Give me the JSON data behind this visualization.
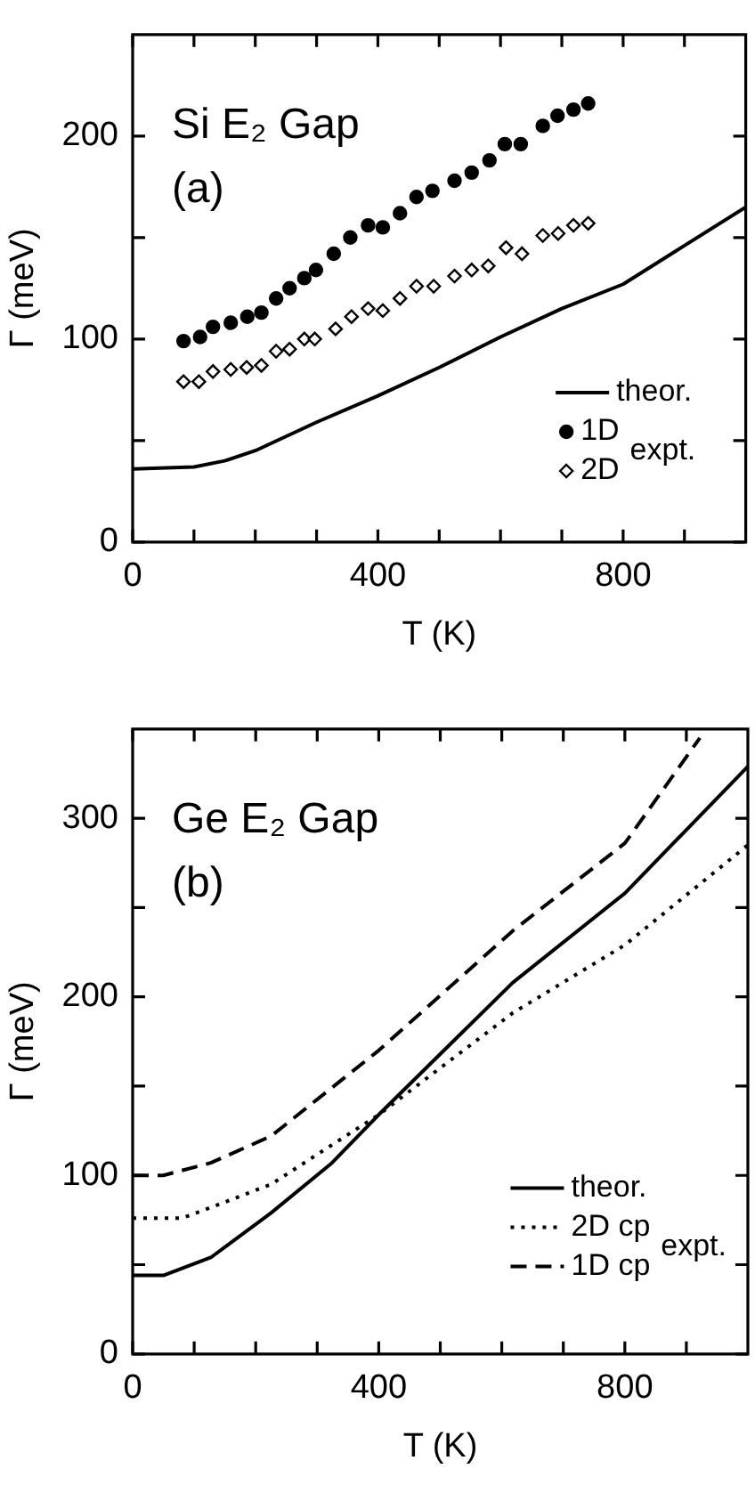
{
  "chart_data": [
    {
      "type": "scatter",
      "title": "Si E₂ Gap",
      "subtitle": "(a)",
      "xlabel": "T (K)",
      "ylabel": "Γ (meV)",
      "annotations": [
        "expt."
      ],
      "xlim": [
        0,
        1000
      ],
      "xticks": [
        0,
        {
          "value": 100,
          "label": null
        },
        {
          "value": 200,
          "label": null
        },
        {
          "value": 300,
          "label": null
        },
        400,
        {
          "value": 500,
          "label": null
        },
        {
          "value": 600,
          "label": null
        },
        {
          "value": 700,
          "label": null
        },
        800,
        {
          "value": 900,
          "label": null
        }
      ],
      "ylim": [
        0,
        250
      ],
      "yticks": [
        0,
        {
          "value": 50,
          "label": null
        },
        100,
        {
          "value": 150,
          "label": null
        },
        200
      ],
      "grid": false,
      "legend": "bottom right",
      "series": [
        {
          "name": "theor.",
          "type": "line",
          "color": "#000000",
          "line_style": "solid",
          "marker": "none",
          "x": [
            0,
            100,
            150,
            200,
            250,
            300,
            400,
            500,
            600,
            700,
            800,
            900,
            1000
          ],
          "values": [
            36,
            37,
            40,
            45,
            52,
            59,
            72,
            86,
            101,
            115,
            127,
            146,
            165
          ]
        },
        {
          "name": "1D",
          "color": "#000000",
          "marker": "circle",
          "x": [
            83,
            110,
            131,
            160,
            187,
            210,
            234,
            256,
            280,
            299,
            328,
            355,
            384,
            408,
            436,
            463,
            489,
            525,
            553,
            582,
            607,
            633,
            669,
            693,
            719,
            743
          ],
          "values": [
            99,
            101,
            106,
            108,
            111,
            113,
            120,
            125,
            130,
            134,
            142,
            150,
            156,
            155,
            162,
            170,
            173,
            178,
            182,
            188,
            196,
            196,
            205,
            210,
            213,
            216
          ]
        },
        {
          "name": "2D",
          "color": "#000000",
          "marker": "diamond",
          "x": [
            83,
            108,
            131,
            160,
            186,
            210,
            234,
            256,
            280,
            297,
            331,
            357,
            384,
            408,
            436,
            463,
            491,
            525,
            553,
            580,
            609,
            635,
            669,
            694,
            719,
            743
          ],
          "values": [
            79,
            79,
            84,
            85,
            86,
            87,
            94,
            95,
            100,
            100,
            105,
            111,
            115,
            114,
            120,
            126,
            126,
            131,
            134,
            136,
            145,
            142,
            151,
            152,
            156,
            157
          ]
        }
      ]
    },
    {
      "type": "line",
      "title": "Ge E₂ Gap",
      "subtitle": "(b)",
      "xlabel": "T (K)",
      "ylabel": "Γ (meV)",
      "annotations": [
        "expt."
      ],
      "xlim": [
        0,
        1000
      ],
      "xticks": [
        0,
        {
          "value": 100,
          "label": null
        },
        {
          "value": 200,
          "label": null
        },
        {
          "value": 300,
          "label": null
        },
        400,
        {
          "value": 500,
          "label": null
        },
        {
          "value": 600,
          "label": null
        },
        {
          "value": 700,
          "label": null
        },
        800,
        {
          "value": 900,
          "label": null
        }
      ],
      "ylim": [
        0,
        350
      ],
      "yticks": [
        0,
        {
          "value": 50,
          "label": null
        },
        100,
        {
          "value": 150,
          "label": null
        },
        200,
        {
          "value": 250,
          "label": null
        },
        300
      ],
      "grid": false,
      "legend": "bottom right",
      "series": [
        {
          "name": "theor.",
          "color": "#000000",
          "line_style": "solid",
          "marker": "none",
          "x": [
            0,
            50,
            127,
            225,
            324,
            400,
            618,
            800,
            1000
          ],
          "values": [
            44,
            44,
            54,
            79,
            107,
            134,
            208,
            258,
            329
          ]
        },
        {
          "name": "2D cp",
          "color": "#000000",
          "line_style": "dotted",
          "marker": "none",
          "x": [
            0,
            80,
            127,
            225,
            400,
            618,
            800,
            1000
          ],
          "values": [
            76,
            76,
            82,
            95,
            134,
            191,
            229,
            285
          ]
        },
        {
          "name": "1D cp",
          "color": "#000000",
          "line_style": "dashed",
          "marker": "none",
          "x": [
            0,
            50,
            127,
            225,
            400,
            618,
            800,
            922
          ],
          "values": [
            100,
            100,
            107,
            122,
            170,
            237,
            286,
            345
          ]
        }
      ]
    }
  ]
}
